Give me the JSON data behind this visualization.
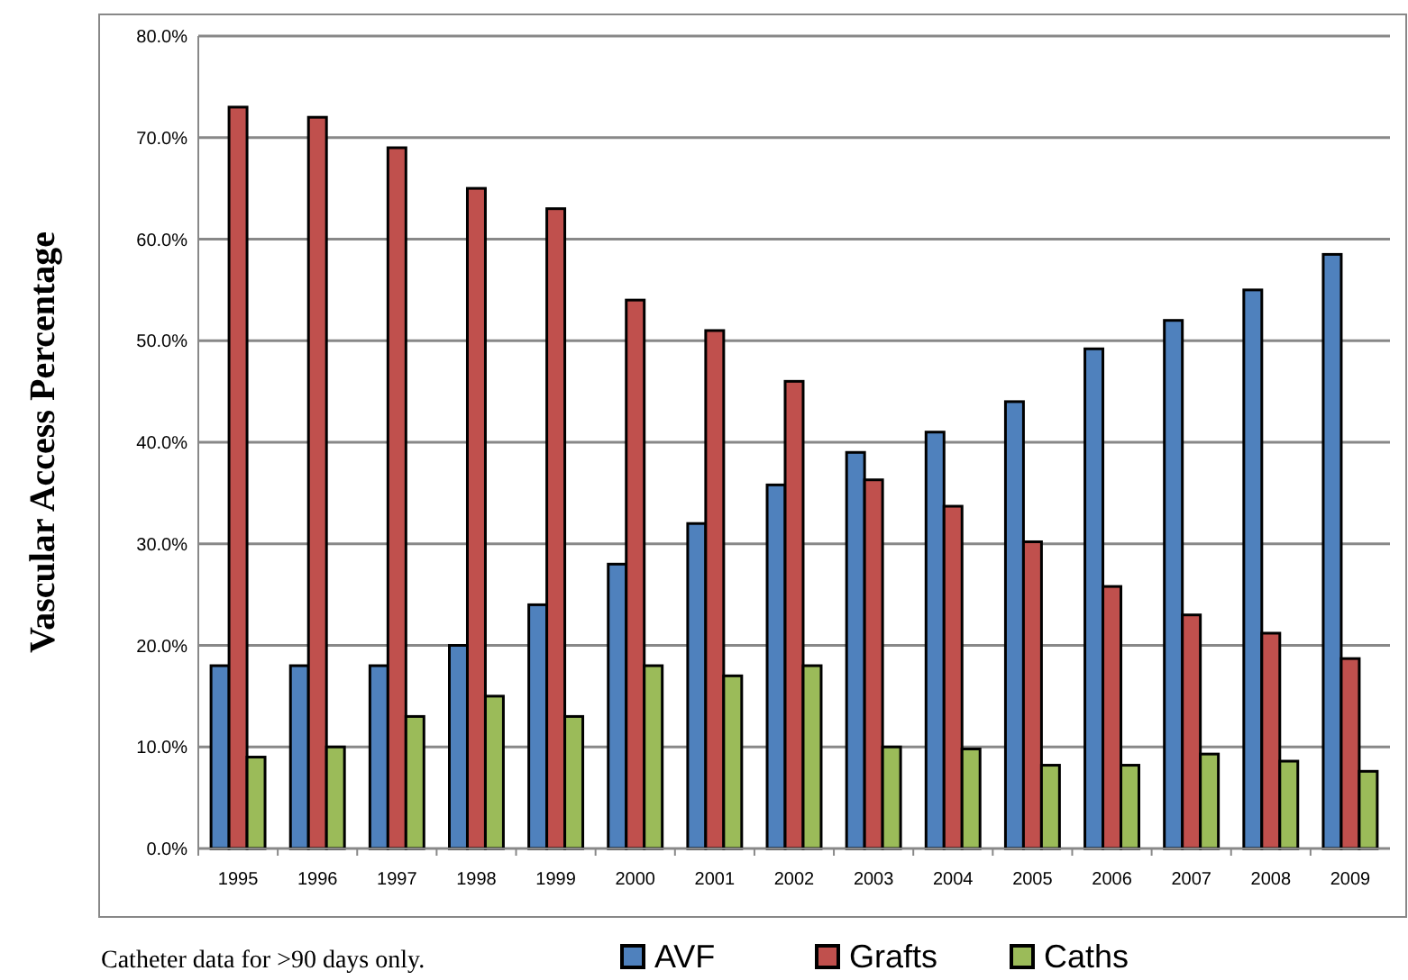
{
  "chart_data": {
    "type": "bar",
    "ylabel": "Vascular Access Percentage",
    "categories": [
      "1995",
      "1996",
      "1997",
      "1998",
      "1999",
      "2000",
      "2001",
      "2002",
      "2003",
      "2004",
      "2005",
      "2006",
      "2007",
      "2008",
      "2009"
    ],
    "series": [
      {
        "name": "AVF",
        "color": "#4f81bd",
        "values": [
          18,
          18,
          18,
          20,
          24,
          28,
          32,
          35.8,
          39,
          41,
          44,
          49.2,
          52,
          55,
          58.5
        ]
      },
      {
        "name": "Grafts",
        "color": "#c0504d",
        "values": [
          73,
          72,
          69,
          65,
          63,
          54,
          51,
          46,
          36.3,
          33.7,
          30.2,
          25.8,
          23,
          21.2,
          18.7
        ]
      },
      {
        "name": "Caths",
        "color": "#9bbb59",
        "values": [
          9,
          10,
          13,
          15,
          13,
          18,
          17,
          18,
          10,
          9.8,
          8.2,
          8.2,
          9.3,
          8.6,
          7.6
        ]
      }
    ],
    "ylim": [
      0,
      80
    ],
    "yticks": [
      {
        "value": 0,
        "label": "0.0%"
      },
      {
        "value": 10,
        "label": "10.0%"
      },
      {
        "value": 20,
        "label": "20.0%"
      },
      {
        "value": 30,
        "label": "30.0%"
      },
      {
        "value": 40,
        "label": "40.0%"
      },
      {
        "value": 50,
        "label": "50.0%"
      },
      {
        "value": 60,
        "label": "60.0%"
      },
      {
        "value": 70,
        "label": "70.0%"
      },
      {
        "value": 80,
        "label": "80.0%"
      }
    ],
    "grid": "y",
    "legend": "bottom",
    "annotations": [
      "Catheter data for >90 days only."
    ]
  }
}
